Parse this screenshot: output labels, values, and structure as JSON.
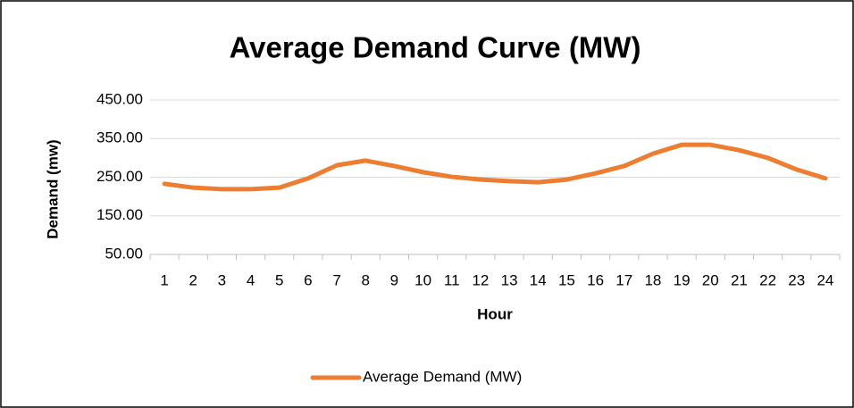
{
  "chart_data": {
    "type": "line",
    "title": "Average Demand Curve (MW)",
    "x_label": "Hour",
    "y_label": "Demand (mw)",
    "categories": [
      "1",
      "2",
      "3",
      "4",
      "5",
      "6",
      "7",
      "8",
      "9",
      "10",
      "11",
      "12",
      "13",
      "14",
      "15",
      "16",
      "17",
      "18",
      "19",
      "20",
      "21",
      "22",
      "23",
      "24"
    ],
    "series": [
      {
        "name": "Average Demand (MW)",
        "color": "#ed7d31",
        "values": [
          233,
          223,
          219,
          219,
          223,
          247,
          281,
          293,
          279,
          263,
          251,
          244,
          240,
          237,
          244,
          260,
          279,
          311,
          334,
          334,
          320,
          300,
          270,
          247
        ]
      }
    ],
    "ylim": [
      50,
      450
    ],
    "yticks": [
      {
        "value": 50,
        "label": "50.00"
      },
      {
        "value": 150,
        "label": "150.00"
      },
      {
        "value": 250,
        "label": "250.00"
      },
      {
        "value": 350,
        "label": "350.00"
      },
      {
        "value": 450,
        "label": "450.00"
      }
    ],
    "grid": true,
    "legend": "bottom"
  }
}
